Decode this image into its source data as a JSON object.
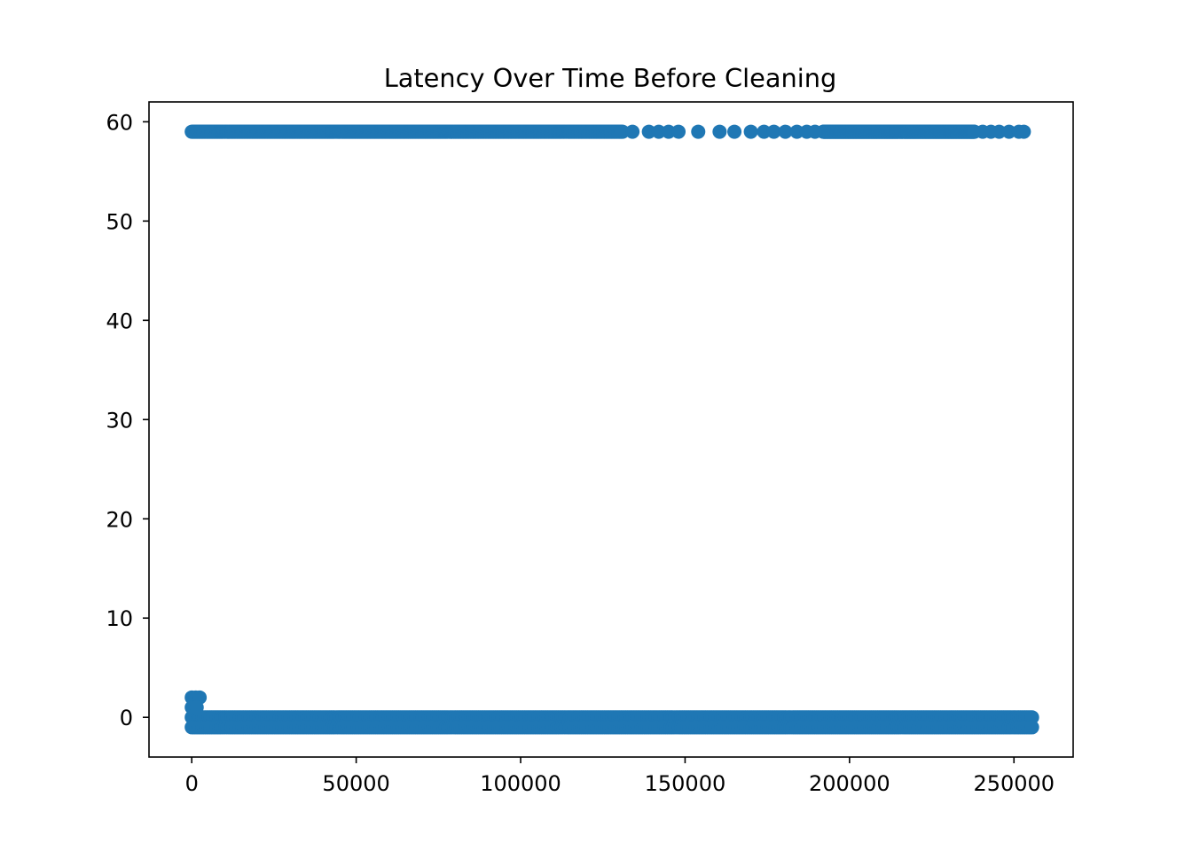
{
  "chart_data": {
    "type": "scatter",
    "title": "Latency Over Time Before Cleaning",
    "xlabel": "",
    "ylabel": "",
    "xlim": [
      -13000,
      268000
    ],
    "ylim": [
      -4,
      62
    ],
    "x_ticks": [
      0,
      50000,
      100000,
      150000,
      200000,
      250000
    ],
    "x_tick_labels": [
      "0",
      "50000",
      "100000",
      "150000",
      "200000",
      "250000"
    ],
    "y_ticks": [
      0,
      10,
      20,
      30,
      40,
      50,
      60
    ],
    "y_tick_labels": [
      "0",
      "10",
      "20",
      "30",
      "40",
      "50",
      "60"
    ],
    "grid": false,
    "legend": "none",
    "marker_color": "#1f77b4",
    "series": [
      {
        "description": "dense points at 59 (upper band)",
        "segments": [
          {
            "y": 59,
            "x_start": 0,
            "x_end": 131000
          },
          {
            "y": 59,
            "x_start": 192000,
            "x_end": 238000
          }
        ],
        "points": [
          {
            "x": 134000,
            "y": 59
          },
          {
            "x": 139000,
            "y": 59
          },
          {
            "x": 142000,
            "y": 59
          },
          {
            "x": 145000,
            "y": 59
          },
          {
            "x": 148000,
            "y": 59
          },
          {
            "x": 154000,
            "y": 59
          },
          {
            "x": 160500,
            "y": 59
          },
          {
            "x": 165000,
            "y": 59
          },
          {
            "x": 170000,
            "y": 59
          },
          {
            "x": 174000,
            "y": 59
          },
          {
            "x": 177000,
            "y": 59
          },
          {
            "x": 180500,
            "y": 59
          },
          {
            "x": 184000,
            "y": 59
          },
          {
            "x": 187000,
            "y": 59
          },
          {
            "x": 189500,
            "y": 59
          },
          {
            "x": 240500,
            "y": 59
          },
          {
            "x": 243000,
            "y": 59
          },
          {
            "x": 245500,
            "y": 59
          },
          {
            "x": 248500,
            "y": 59
          },
          {
            "x": 251500,
            "y": 59
          },
          {
            "x": 253000,
            "y": 59
          }
        ]
      },
      {
        "description": "dense points near 0 (lower band)",
        "segments": [
          {
            "y": 0,
            "x_start": 0,
            "x_end": 255500
          },
          {
            "y": -1,
            "x_start": 0,
            "x_end": 255500
          }
        ],
        "points": [
          {
            "x": 0,
            "y": 2
          },
          {
            "x": 1200,
            "y": 2
          },
          {
            "x": 2400,
            "y": 2
          },
          {
            "x": 0,
            "y": 1
          },
          {
            "x": 1500,
            "y": 1
          }
        ]
      }
    ]
  }
}
